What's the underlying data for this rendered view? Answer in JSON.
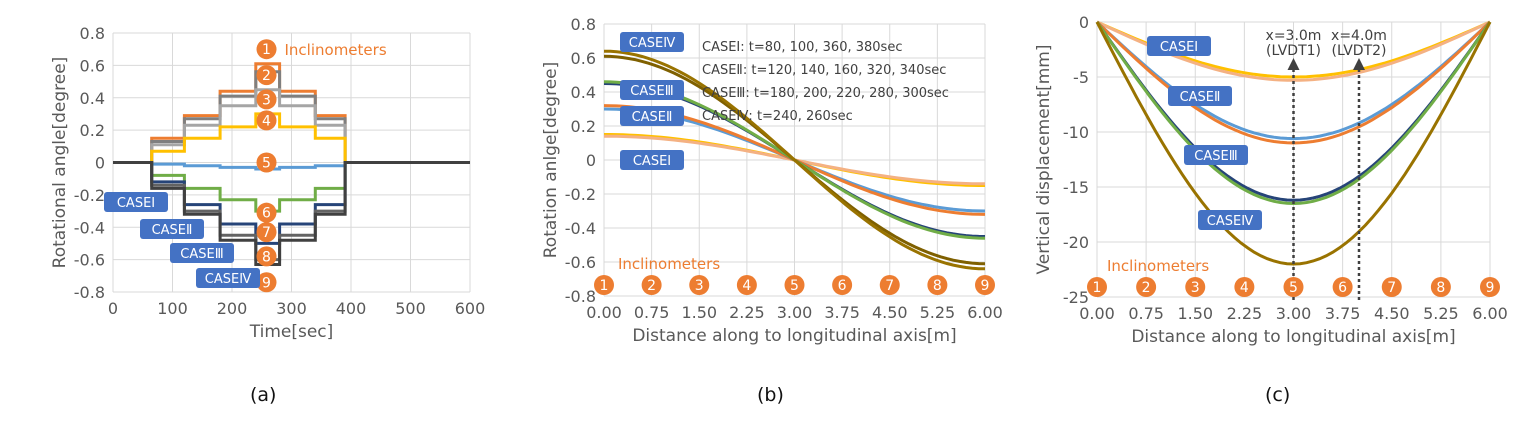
{
  "chart_data": [
    {
      "type": "line",
      "panel_label": "(a)",
      "xlabel": "Time[sec]",
      "ylabel": "Rotational angle[degree]",
      "xlim": [
        0,
        600
      ],
      "ylim": [
        -0.8,
        0.8
      ],
      "xticks": [
        "0",
        "100",
        "200",
        "300",
        "400",
        "500",
        "600"
      ],
      "yticks": [
        "0.8",
        "0.6",
        "0.4",
        "0.2",
        "0",
        "-0.2",
        "-0.4",
        "-0.6",
        "-0.8"
      ],
      "grid": true,
      "annotation": "Inclinometers",
      "inclinometer_numbers": [
        "1",
        "2",
        "3",
        "4",
        "5",
        "6",
        "7",
        "8",
        "9"
      ],
      "case_labels": [
        "CASEⅠ",
        "CASEⅡ",
        "CASEⅢ",
        "CASEⅣ"
      ],
      "series": [
        {
          "name": "1",
          "color": "#ed7d31",
          "x": [
            0,
            65,
            65,
            120,
            120,
            180,
            180,
            240,
            240,
            280,
            280,
            340,
            340,
            390,
            390,
            600
          ],
          "y": [
            0,
            0,
            0.15,
            0.15,
            0.29,
            0.29,
            0.44,
            0.44,
            0.61,
            0.61,
            0.44,
            0.44,
            0.29,
            0.29,
            0,
            0
          ]
        },
        {
          "name": "2",
          "color": "#7f7f7f",
          "x": [
            0,
            65,
            65,
            120,
            120,
            180,
            180,
            240,
            240,
            280,
            280,
            340,
            340,
            390,
            390,
            600
          ],
          "y": [
            0,
            0,
            0.13,
            0.13,
            0.27,
            0.27,
            0.41,
            0.41,
            0.56,
            0.56,
            0.41,
            0.41,
            0.27,
            0.27,
            0,
            0
          ]
        },
        {
          "name": "3",
          "color": "#a5a5a5",
          "x": [
            0,
            65,
            65,
            120,
            120,
            180,
            180,
            240,
            240,
            280,
            280,
            340,
            340,
            390,
            390,
            600
          ],
          "y": [
            0,
            0,
            0.11,
            0.11,
            0.23,
            0.23,
            0.35,
            0.35,
            0.45,
            0.45,
            0.35,
            0.35,
            0.23,
            0.23,
            0,
            0
          ]
        },
        {
          "name": "4",
          "color": "#ffc000",
          "x": [
            0,
            65,
            65,
            120,
            120,
            180,
            180,
            240,
            240,
            280,
            280,
            340,
            340,
            390,
            390,
            600
          ],
          "y": [
            0,
            0,
            0.07,
            0.07,
            0.15,
            0.15,
            0.22,
            0.22,
            0.3,
            0.3,
            0.22,
            0.22,
            0.15,
            0.15,
            0,
            0
          ]
        },
        {
          "name": "5",
          "color": "#5b9bd5",
          "x": [
            0,
            65,
            65,
            120,
            120,
            180,
            180,
            240,
            240,
            280,
            280,
            340,
            340,
            390,
            390,
            600
          ],
          "y": [
            0,
            0,
            -0.01,
            -0.01,
            -0.02,
            -0.02,
            -0.03,
            -0.03,
            -0.04,
            -0.04,
            -0.03,
            -0.03,
            -0.02,
            -0.02,
            0,
            0
          ]
        },
        {
          "name": "6",
          "color": "#70ad47",
          "x": [
            0,
            65,
            65,
            120,
            120,
            180,
            180,
            240,
            240,
            280,
            280,
            340,
            340,
            390,
            390,
            600
          ],
          "y": [
            0,
            0,
            -0.08,
            -0.08,
            -0.16,
            -0.16,
            -0.23,
            -0.23,
            -0.3,
            -0.3,
            -0.23,
            -0.23,
            -0.16,
            -0.16,
            0,
            0
          ]
        },
        {
          "name": "7",
          "color": "#264478",
          "x": [
            0,
            65,
            65,
            120,
            120,
            180,
            180,
            240,
            240,
            280,
            280,
            340,
            340,
            390,
            390,
            600
          ],
          "y": [
            0,
            0,
            -0.12,
            -0.12,
            -0.26,
            -0.26,
            -0.38,
            -0.38,
            -0.5,
            -0.5,
            -0.38,
            -0.38,
            -0.26,
            -0.26,
            0,
            0
          ]
        },
        {
          "name": "8",
          "color": "#636363",
          "x": [
            0,
            65,
            65,
            120,
            120,
            180,
            180,
            240,
            240,
            280,
            280,
            340,
            340,
            390,
            390,
            600
          ],
          "y": [
            0,
            0,
            -0.14,
            -0.14,
            -0.3,
            -0.3,
            -0.45,
            -0.45,
            -0.6,
            -0.6,
            -0.45,
            -0.45,
            -0.3,
            -0.3,
            0,
            0
          ]
        },
        {
          "name": "9",
          "color": "#404040",
          "x": [
            0,
            65,
            65,
            120,
            120,
            180,
            180,
            240,
            240,
            280,
            280,
            340,
            340,
            390,
            390,
            600
          ],
          "y": [
            0,
            0,
            -0.16,
            -0.16,
            -0.32,
            -0.32,
            -0.48,
            -0.48,
            -0.63,
            -0.63,
            -0.48,
            -0.48,
            -0.32,
            -0.32,
            0,
            0
          ]
        }
      ]
    },
    {
      "type": "line",
      "panel_label": "(b)",
      "xlabel": "Distance along to longitudinal axis[m]",
      "ylabel": "Rotation anlge[degree]",
      "xlim": [
        0,
        6
      ],
      "ylim": [
        -0.8,
        0.8
      ],
      "xticks": [
        "0.00",
        "0.75",
        "1.50",
        "2.25",
        "3.00",
        "3.75",
        "4.50",
        "5.25",
        "6.00"
      ],
      "yticks": [
        "0.8",
        "0.6",
        "0.4",
        "0.2",
        "0",
        "-0.2",
        "-0.4",
        "-0.6",
        "-0.8"
      ],
      "grid": true,
      "annotation": "Inclinometers",
      "inclinometer_numbers": [
        "1",
        "2",
        "3",
        "4",
        "5",
        "6",
        "7",
        "8",
        "9"
      ],
      "case_labels": [
        "CASEⅣ",
        "CASEⅢ",
        "CASEⅡ",
        "CASEⅠ"
      ],
      "legend_lines": [
        "CASEⅠ: t=80, 100, 360, 380sec",
        "CASEⅡ: t=120, 140, 160, 320, 340sec",
        "CASEⅢ: t=180, 200, 220, 280, 300sec",
        "CASEⅣ: t=240, 260sec"
      ],
      "series": [
        {
          "case": "Ⅰ",
          "color": "#ffc000",
          "amplitude": 0.15
        },
        {
          "case": "Ⅰ",
          "color": "#f4b183",
          "amplitude": 0.14
        },
        {
          "case": "Ⅱ",
          "color": "#5b9bd5",
          "amplitude": 0.3
        },
        {
          "case": "Ⅱ",
          "color": "#ed7d31",
          "amplitude": 0.32
        },
        {
          "case": "Ⅲ",
          "color": "#264478",
          "amplitude": 0.45
        },
        {
          "case": "Ⅲ",
          "color": "#70ad47",
          "amplitude": 0.46
        },
        {
          "case": "Ⅳ",
          "color": "#7f6000",
          "amplitude": 0.61
        },
        {
          "case": "Ⅳ",
          "color": "#997300",
          "amplitude": 0.64
        }
      ]
    },
    {
      "type": "line",
      "panel_label": "(c)",
      "xlabel": "Distance along to longitudinal axis[m]",
      "ylabel": "Vertical displacement[mm]",
      "xlim": [
        0,
        6
      ],
      "ylim": [
        -25,
        0
      ],
      "xticks": [
        "0.00",
        "0.75",
        "1.50",
        "2.25",
        "3.00",
        "3.75",
        "4.50",
        "5.25",
        "6.00"
      ],
      "yticks": [
        "0",
        "-5",
        "-10",
        "-15",
        "-20",
        "-25"
      ],
      "grid": true,
      "annotation": "Inclinometers",
      "inclinometer_numbers": [
        "1",
        "2",
        "3",
        "4",
        "5",
        "6",
        "7",
        "8",
        "9"
      ],
      "case_labels": [
        "CASEⅠ",
        "CASEⅡ",
        "CASEⅢ",
        "CASEⅣ"
      ],
      "lvdt_labels": [
        {
          "line1": "x=3.0m",
          "line2": "(LVDT1)",
          "x": 3.0
        },
        {
          "line1": "x=4.0m",
          "line2": "(LVDT2)",
          "x": 4.0
        }
      ],
      "series": [
        {
          "case": "Ⅰ",
          "color": "#ffc000",
          "min": -5.0
        },
        {
          "case": "Ⅰ",
          "color": "#f4b183",
          "min": -5.3
        },
        {
          "case": "Ⅱ",
          "color": "#5b9bd5",
          "min": -10.6
        },
        {
          "case": "Ⅱ",
          "color": "#ed7d31",
          "min": -11.0
        },
        {
          "case": "Ⅲ",
          "color": "#264478",
          "min": -16.2
        },
        {
          "case": "Ⅲ",
          "color": "#70ad47",
          "min": -16.5
        },
        {
          "case": "Ⅳ",
          "color": "#997300",
          "min": -22.0
        }
      ]
    }
  ]
}
